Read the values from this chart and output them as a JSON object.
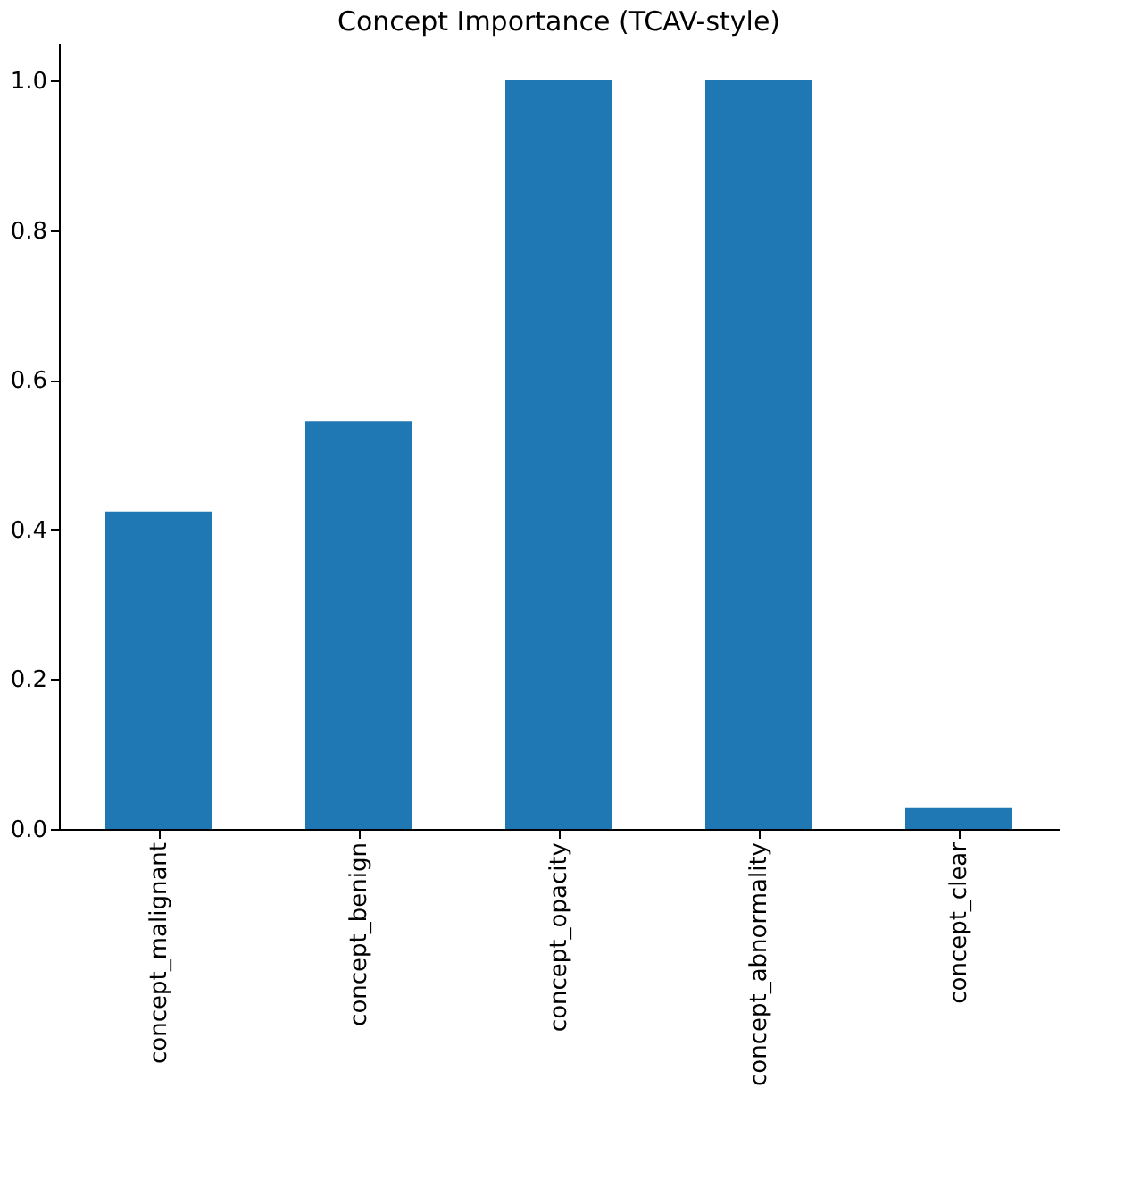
{
  "chart_data": {
    "type": "bar",
    "title": "Concept Importance (TCAV-style)",
    "categories": [
      "concept_malignant",
      "concept_benign",
      "concept_opacity",
      "concept_abnormality",
      "concept_clear"
    ],
    "values": [
      0.424,
      0.545,
      1.0,
      1.0,
      0.029
    ],
    "color": "#1f77b4",
    "ylim": [
      0,
      1.05
    ],
    "yticks": [
      {
        "value": 0,
        "label": "0.0"
      },
      0.2,
      0.4,
      0.6,
      0.8,
      {
        "value": 1,
        "label": "1.0"
      }
    ],
    "grid": false
  }
}
